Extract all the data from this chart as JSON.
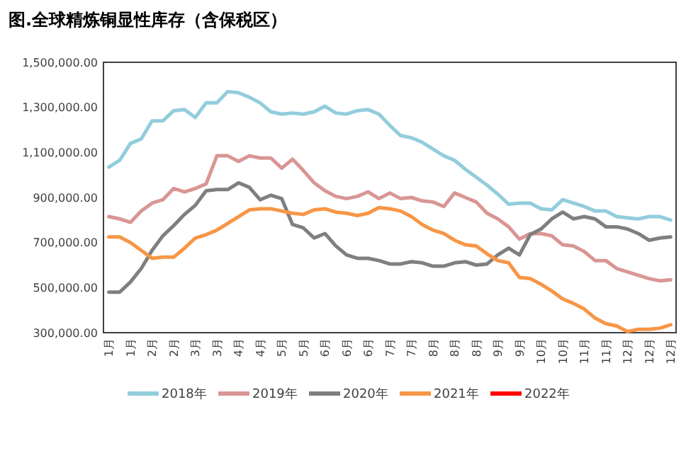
{
  "chart_data": {
    "type": "line",
    "title": "图.全球精炼铜显性库存（含保税区）",
    "categories": [
      "1月",
      null,
      "1月",
      null,
      "2月",
      null,
      "2月",
      null,
      "3月",
      null,
      "3月",
      null,
      "4月",
      null,
      "4月",
      null,
      "5月",
      null,
      "5月",
      null,
      "6月",
      null,
      "6月",
      null,
      "6月",
      null,
      "7月",
      null,
      "7月",
      null,
      "8月",
      null,
      "8月",
      null,
      "8月",
      null,
      "9月",
      null,
      "9月",
      null,
      "10月",
      null,
      "10月",
      null,
      "11月",
      null,
      "11月",
      null,
      "12月",
      null,
      "12月",
      null,
      "12月"
    ],
    "series": [
      {
        "name": "2018年",
        "color": "#92cddc",
        "values": [
          1035000,
          1065000,
          1140000,
          1160000,
          1240000,
          1240000,
          1285000,
          1290000,
          1255000,
          1320000,
          1320000,
          1370000,
          1365000,
          1345000,
          1320000,
          1280000,
          1270000,
          1275000,
          1270000,
          1280000,
          1305000,
          1275000,
          1270000,
          1285000,
          1290000,
          1270000,
          1220000,
          1175000,
          1165000,
          1145000,
          1115000,
          1085000,
          1065000,
          1025000,
          990000,
          955000,
          915000,
          870000,
          875000,
          875000,
          850000,
          845000,
          890000,
          875000,
          860000,
          840000,
          840000,
          815000,
          810000,
          805000,
          815000,
          815000,
          800000
        ]
      },
      {
        "name": "2019年",
        "color": "#d99694",
        "values": [
          815000,
          805000,
          790000,
          840000,
          875000,
          890000,
          940000,
          925000,
          940000,
          960000,
          1085000,
          1085000,
          1060000,
          1085000,
          1075000,
          1075000,
          1030000,
          1070000,
          1020000,
          965000,
          930000,
          905000,
          895000,
          905000,
          925000,
          895000,
          920000,
          895000,
          900000,
          885000,
          880000,
          860000,
          920000,
          900000,
          880000,
          830000,
          805000,
          770000,
          715000,
          740000,
          740000,
          730000,
          690000,
          685000,
          660000,
          620000,
          620000,
          585000,
          570000,
          555000,
          540000,
          530000,
          535000
        ]
      },
      {
        "name": "2020年",
        "color": "#7f7f7f",
        "values": [
          480000,
          480000,
          525000,
          585000,
          665000,
          730000,
          775000,
          825000,
          865000,
          930000,
          935000,
          935000,
          965000,
          945000,
          890000,
          910000,
          895000,
          780000,
          765000,
          720000,
          740000,
          685000,
          645000,
          630000,
          630000,
          620000,
          605000,
          605000,
          615000,
          610000,
          595000,
          595000,
          610000,
          615000,
          600000,
          605000,
          645000,
          675000,
          645000,
          735000,
          760000,
          805000,
          835000,
          805000,
          815000,
          805000,
          770000,
          770000,
          760000,
          740000,
          710000,
          720000,
          725000
        ]
      },
      {
        "name": "2021年",
        "color": "#f79646",
        "values": [
          725000,
          725000,
          700000,
          665000,
          630000,
          635000,
          635000,
          675000,
          720000,
          735000,
          755000,
          785000,
          815000,
          845000,
          850000,
          850000,
          840000,
          830000,
          825000,
          845000,
          850000,
          835000,
          830000,
          820000,
          830000,
          855000,
          850000,
          840000,
          815000,
          780000,
          755000,
          740000,
          710000,
          690000,
          685000,
          650000,
          620000,
          610000,
          545000,
          540000,
          515000,
          485000,
          450000,
          430000,
          405000,
          365000,
          340000,
          330000,
          305000,
          315000,
          315000,
          320000,
          335000
        ]
      },
      {
        "name": "2022年",
        "color": "#ff0000",
        "values": [
          null,
          null,
          null,
          null,
          null,
          null,
          null,
          null,
          null,
          null,
          null,
          null,
          null,
          null,
          null,
          null,
          null,
          null,
          null,
          null,
          null,
          null,
          null,
          null,
          null,
          null,
          null,
          null,
          null,
          null,
          null,
          null,
          null,
          null,
          null,
          null,
          null,
          null,
          null,
          null,
          null,
          null,
          null,
          null,
          null,
          null,
          null,
          null,
          null,
          null,
          null,
          null,
          null
        ]
      }
    ],
    "ylim": [
      300000,
      1500000
    ],
    "yticks": [
      {
        "value": 300000,
        "label": "300,000.00"
      },
      {
        "value": 500000,
        "label": "500,000.00"
      },
      {
        "value": 700000,
        "label": "700,000.00"
      },
      {
        "value": 900000,
        "label": "900,000.00"
      },
      {
        "value": 1100000,
        "label": "1,100,000.00"
      },
      {
        "value": 1300000,
        "label": "1,300,000.00"
      },
      {
        "value": 1500000,
        "label": "1,500,000.00"
      }
    ],
    "grid": false,
    "legend": "bottom",
    "marker": "none",
    "line_style": "solid"
  }
}
